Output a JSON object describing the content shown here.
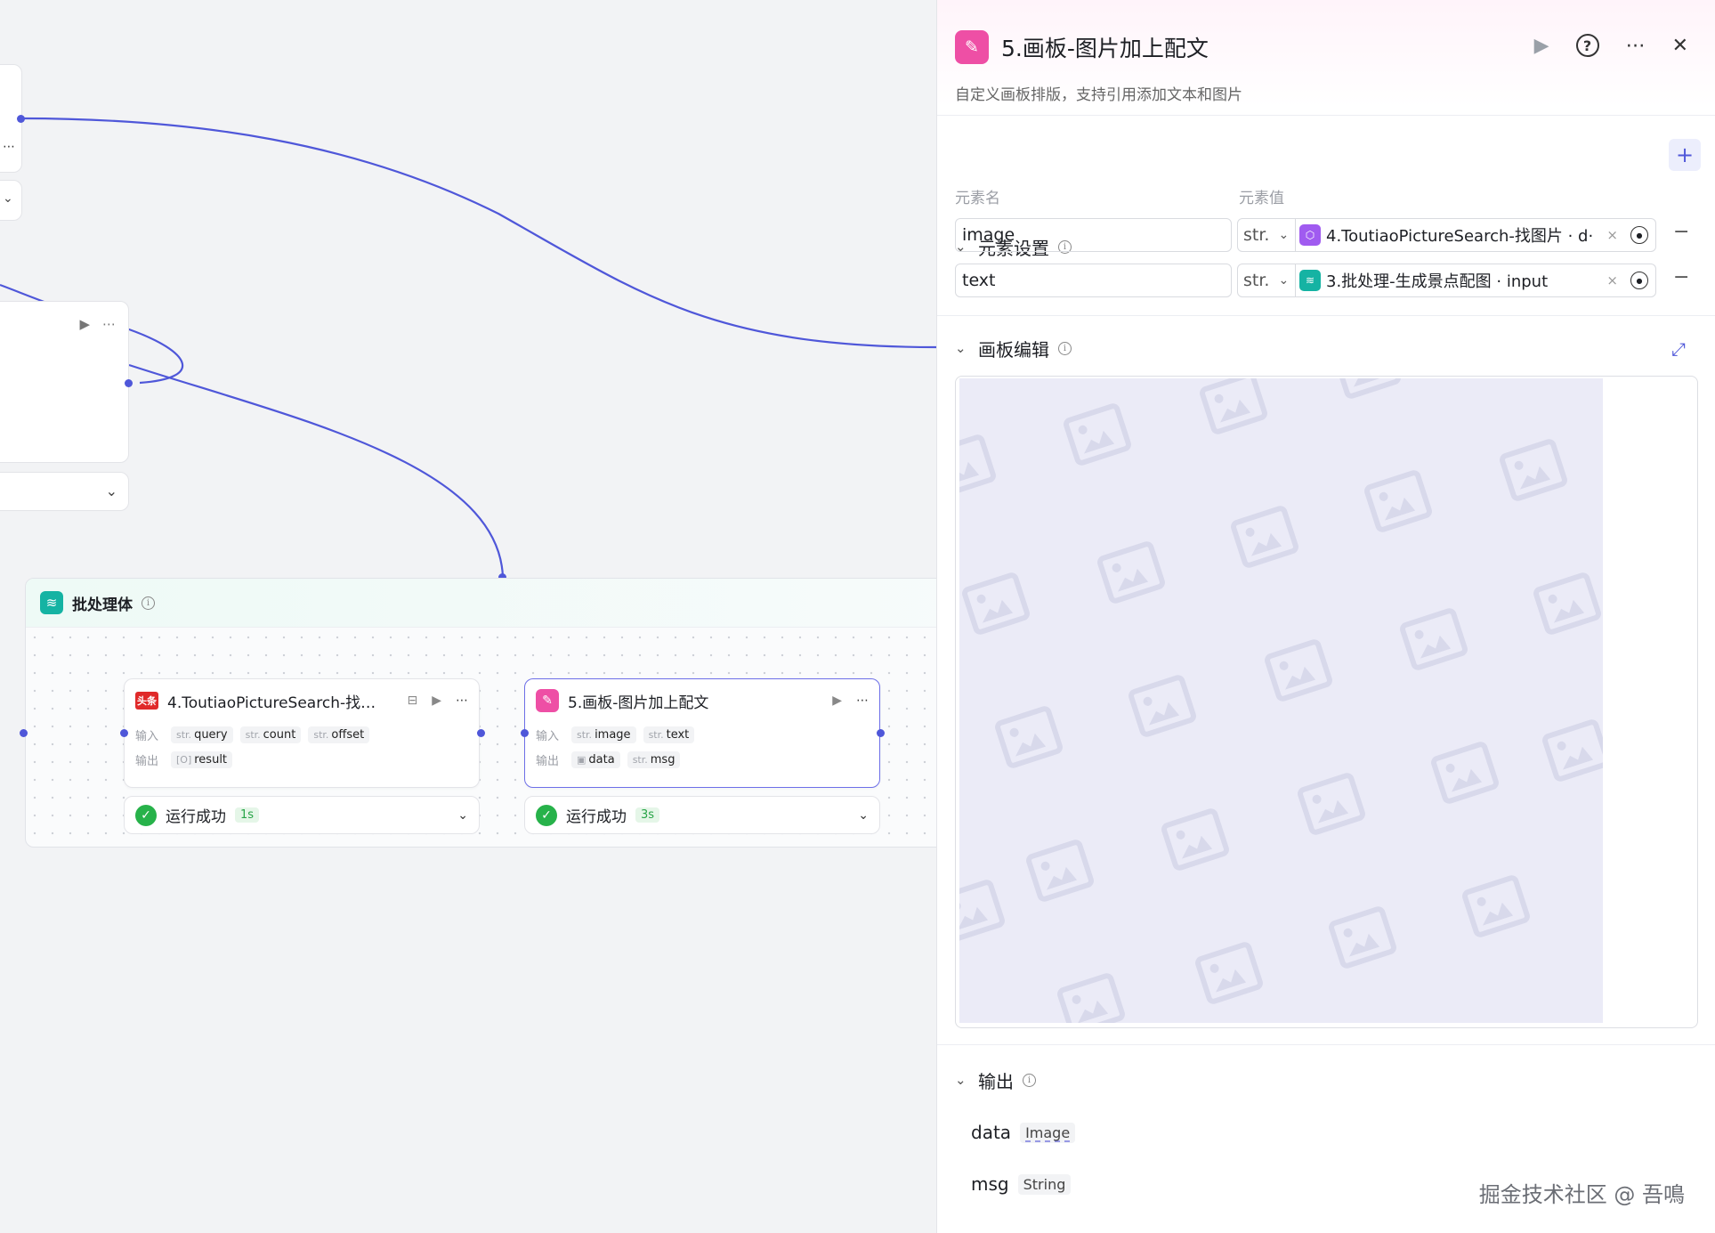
{
  "canvas": {
    "batch_node": {
      "title": "批处理体"
    },
    "node4": {
      "badge": "头条",
      "title": "4.ToutiaoPictureSearch-找…",
      "input_label": "输入",
      "output_label": "输出",
      "inputs": [
        {
          "type": "str.",
          "name": "query"
        },
        {
          "type": "str.",
          "name": "count"
        },
        {
          "type": "str.",
          "name": "offset"
        }
      ],
      "outputs": [
        {
          "type": "[O]",
          "name": "result"
        }
      ],
      "status": "运行成功",
      "duration": "1s"
    },
    "node5": {
      "title": "5.画板-图片加上配文",
      "input_label": "输入",
      "output_label": "输出",
      "inputs": [
        {
          "type": "str.",
          "name": "image"
        },
        {
          "type": "str.",
          "name": "text"
        }
      ],
      "outputs": [
        {
          "type": "img",
          "name": "data"
        },
        {
          "type": "str.",
          "name": "msg"
        }
      ],
      "status": "运行成功",
      "duration": "3s"
    }
  },
  "panel": {
    "title": "5.画板-图片加上配文",
    "description": "自定义画板排版，支持引用添加文本和图片",
    "elements_section": {
      "title": "元素设置",
      "col_name": "元素名",
      "col_value": "元素值",
      "rows": [
        {
          "name": "image",
          "type": "str.",
          "ref": "4.ToutiaoPictureSearch-找图片 · d·",
          "ref_color": "#a05bf0"
        },
        {
          "name": "text",
          "type": "str.",
          "ref": "3.批处理-生成景点配图 · input",
          "ref_color": "#15b3a3"
        }
      ]
    },
    "board_section": {
      "title": "画板编辑"
    },
    "output_section": {
      "title": "输出",
      "items": [
        {
          "name": "data",
          "type": "Image"
        },
        {
          "name": "msg",
          "type": "String"
        }
      ]
    }
  },
  "watermark": "掘金技术社区 @ 吾鳴"
}
